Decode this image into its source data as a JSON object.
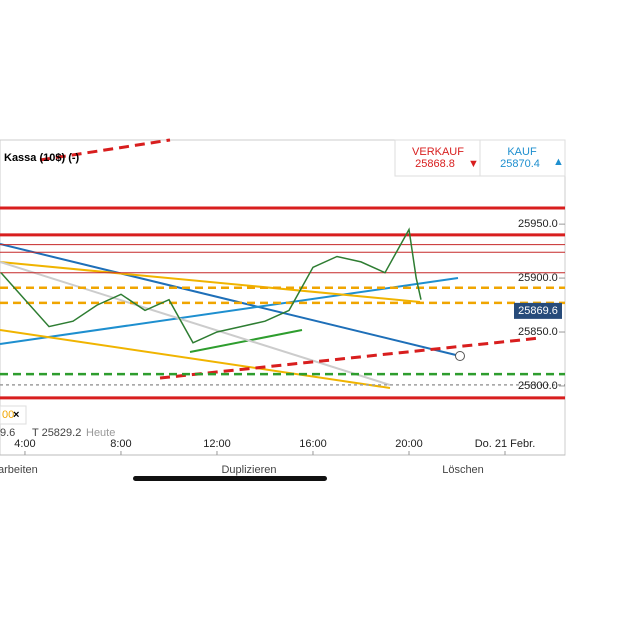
{
  "header": {
    "title": "Kassa (10$) (-)"
  },
  "quotes": {
    "sell": {
      "label": "VERKAUF",
      "value": "25868.8"
    },
    "buy": {
      "label": "KAUF",
      "value": "25870.4"
    }
  },
  "chart_data": {
    "type": "line",
    "color": "#2e7d32",
    "x": [
      3,
      4,
      5,
      6,
      7,
      8,
      9,
      10,
      11,
      12,
      13,
      14,
      15,
      16,
      17,
      18,
      19,
      19.5,
      20,
      20.3,
      20.5
    ],
    "values": [
      25905,
      25880,
      25855,
      25860,
      25875,
      25885,
      25870,
      25880,
      25840,
      25850,
      25855,
      25860,
      25870,
      25910,
      25920,
      25915,
      25905,
      25925,
      25945,
      25900,
      25880
    ],
    "xlim": [
      2.96,
      26.5
    ],
    "xticks": [
      {
        "value": 4,
        "label": "4:00"
      },
      {
        "value": 8,
        "label": "8:00"
      },
      {
        "value": 12,
        "label": "12:00"
      },
      {
        "value": 16,
        "label": "16:00"
      },
      {
        "value": 20,
        "label": "20:00"
      },
      {
        "value": 24,
        "label": "Do. 21 Febr."
      }
    ],
    "ylim": [
      25736,
      26028
    ],
    "yticks": [
      {
        "value": 25800,
        "label": "25800.0"
      },
      {
        "value": 25850,
        "label": "25850.0"
      },
      {
        "value": 25900,
        "label": "25900.0"
      },
      {
        "value": 25950,
        "label": "25950.0"
      }
    ],
    "last_price": 25869.6,
    "levels": [
      {
        "value": 25965,
        "color": "#d81e1e",
        "style": "thick"
      },
      {
        "value": 25940,
        "color": "#d81e1e",
        "style": "thick"
      },
      {
        "value": 25931,
        "color": "#c62828",
        "style": "thin"
      },
      {
        "value": 25924,
        "color": "#c62828",
        "style": "thin"
      },
      {
        "value": 25905,
        "color": "#c62828",
        "style": "thin"
      },
      {
        "value": 25891,
        "color": "#f0a500",
        "style": "dashed"
      },
      {
        "value": 25877,
        "color": "#f0a500",
        "style": "dashed"
      },
      {
        "value": 25811,
        "color": "#2e9d2e",
        "style": "dashed"
      },
      {
        "value": 25801,
        "color": "#9e9e9e",
        "style": "dotted"
      },
      {
        "value": 25789,
        "color": "#d81e1e",
        "style": "thick"
      }
    ]
  },
  "legend_row": {
    "tag": "00",
    "close": "×",
    "items": [
      "9.6",
      "T 25829.2",
      "Heute"
    ]
  },
  "toolbar": [
    "arbeiten",
    "Duplizieren",
    "Löschen"
  ]
}
